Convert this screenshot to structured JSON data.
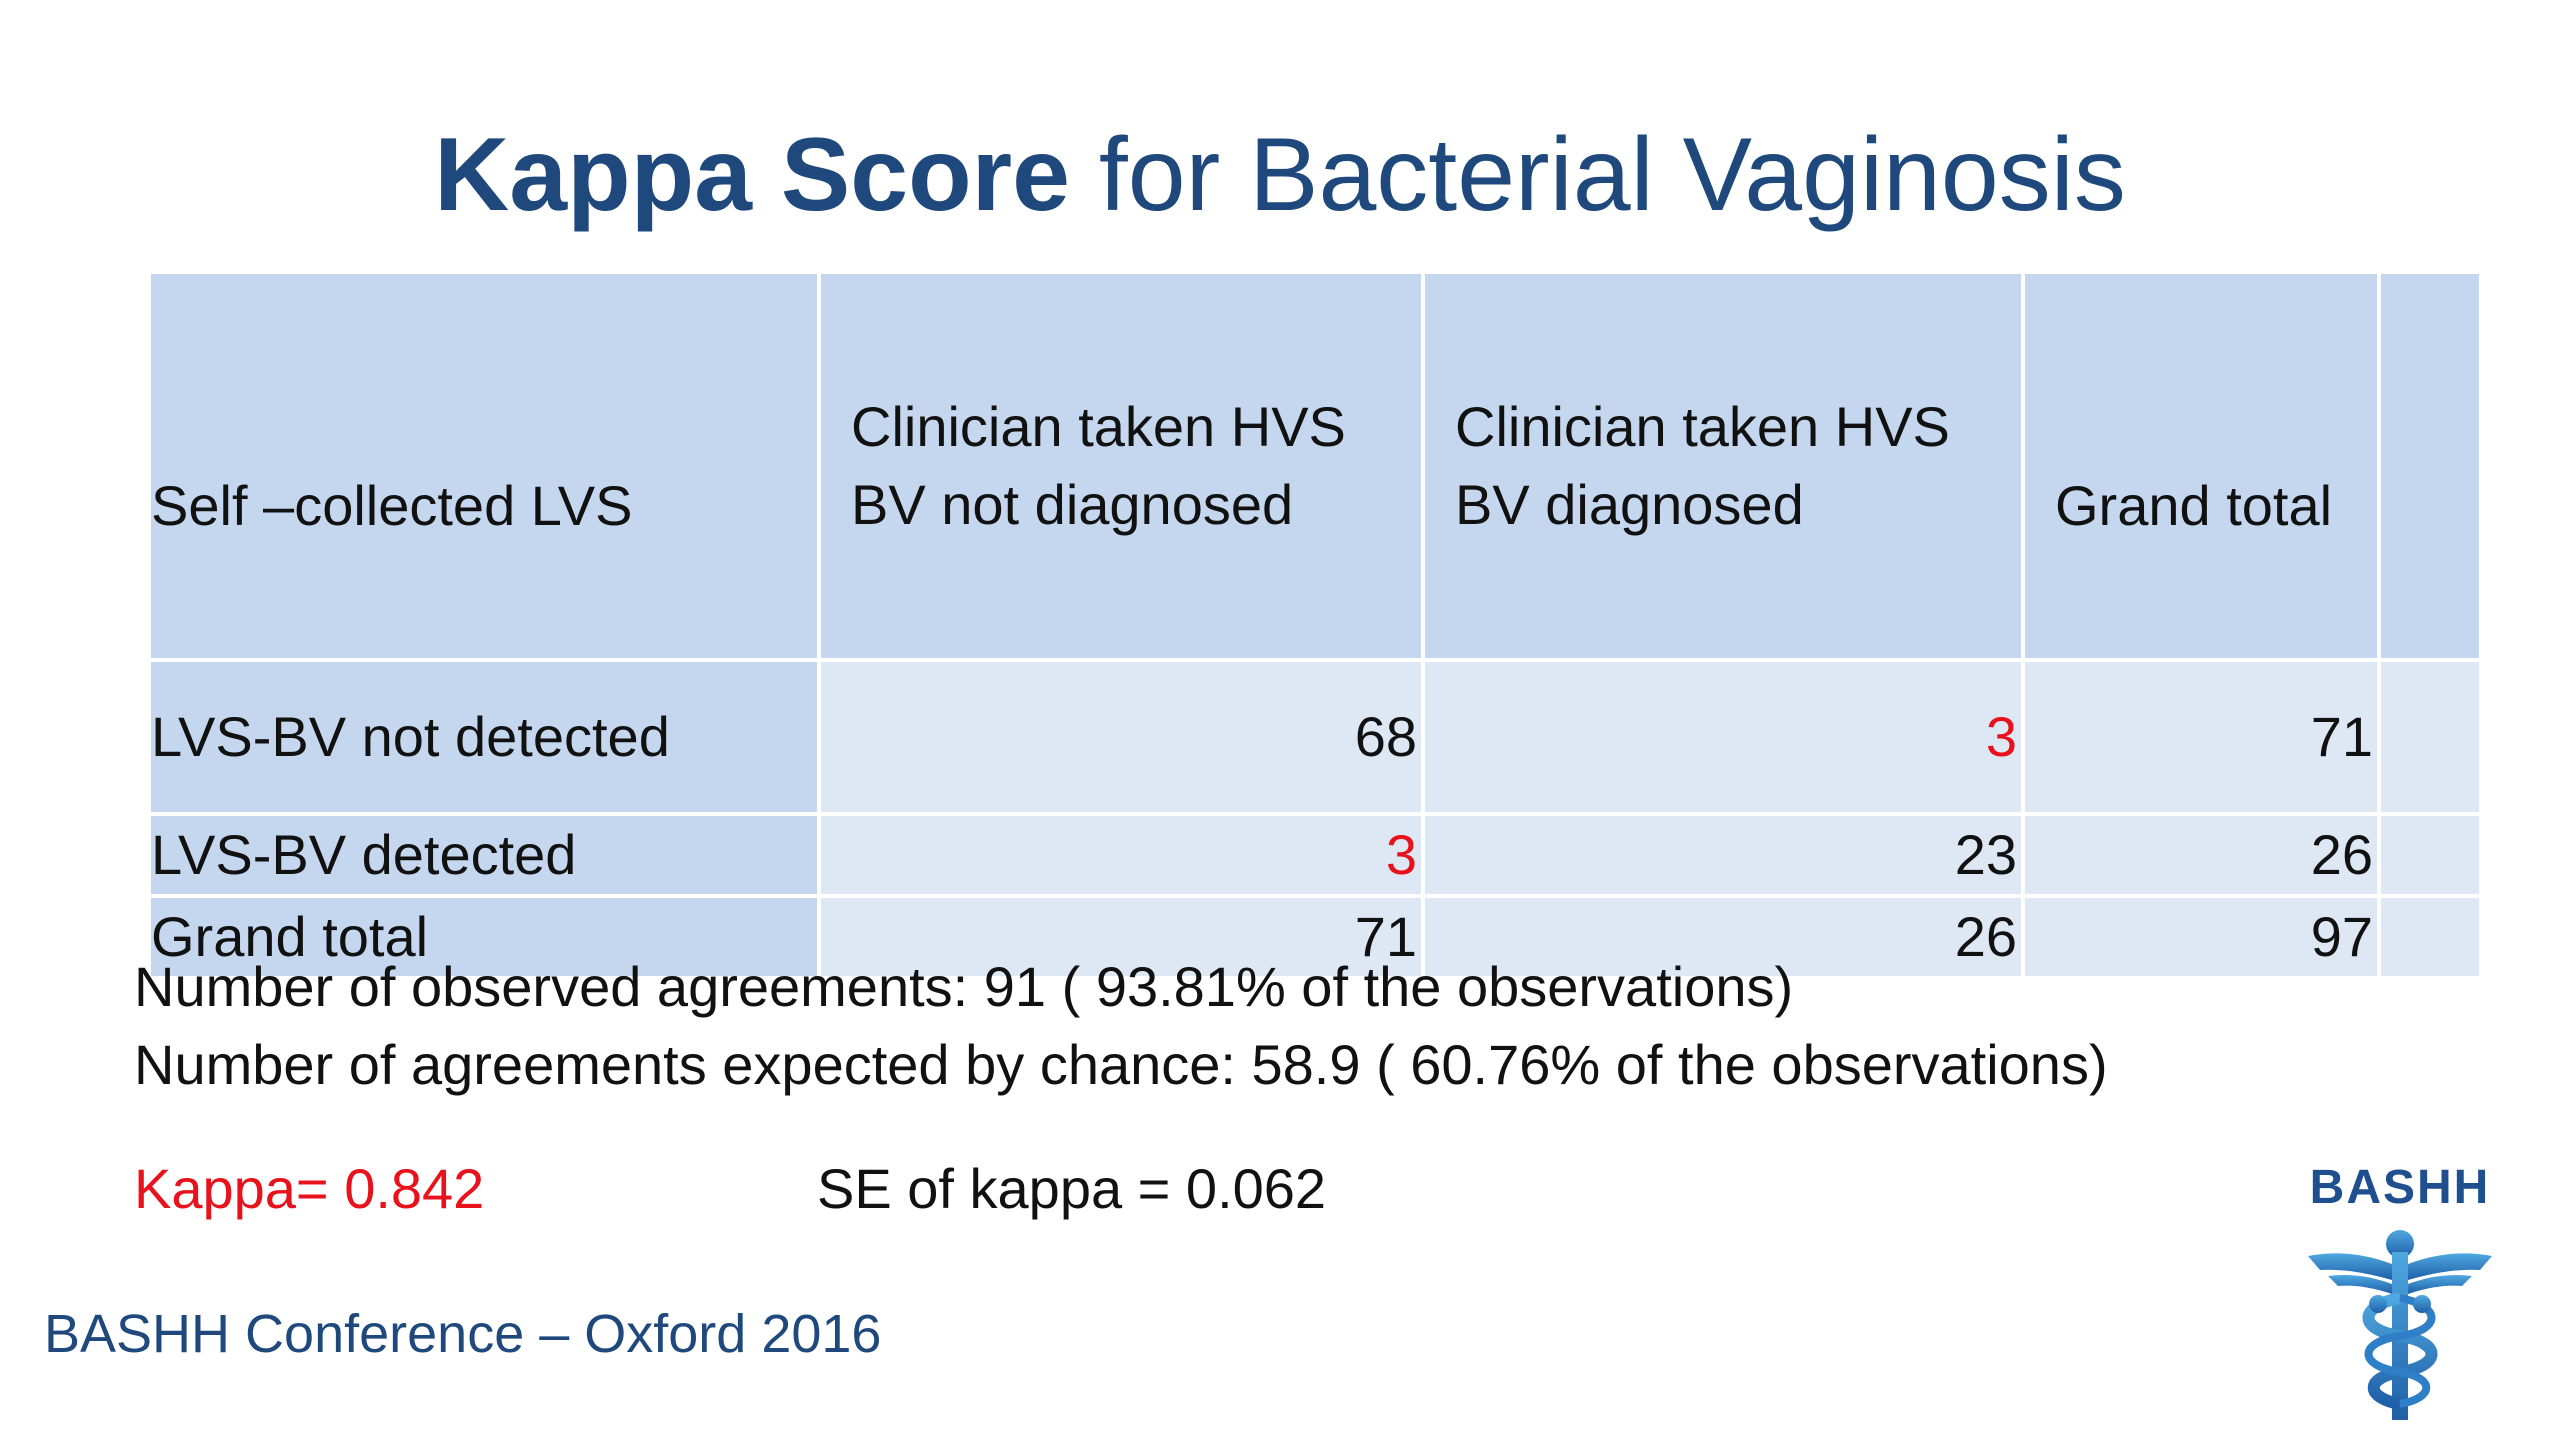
{
  "title": {
    "bold": "Kappa Score",
    "rest": " for Bacterial Vaginosis"
  },
  "table": {
    "header": {
      "col0": "Self –collected LVS",
      "col1_line1": "Clinician taken HVS",
      "col1_line2": "BV not diagnosed",
      "col2_line1": "Clinician taken HVS",
      "col2_line2": "BV diagnosed",
      "col3": "Grand total"
    },
    "rows": [
      {
        "label": "LVS-BV not detected",
        "c1": "68",
        "c2": "3",
        "c3": "71"
      },
      {
        "label": "LVS-BV detected",
        "c1": "3",
        "c2": "23",
        "c3": "26"
      },
      {
        "label": "Grand total",
        "c1": "71",
        "c2": "26",
        "c3": "97"
      }
    ],
    "highlight_color": "#e8121c"
  },
  "stats": {
    "observed": "Number of observed agreements: 91 ( 93.81% of the observations)",
    "expected": "Number of agreements expected by chance: 58.9 ( 60.76% of the observations)"
  },
  "kappa": "Kappa= 0.842",
  "se": "SE of kappa = 0.062",
  "footer": "BASHH Conference – Oxford 2016",
  "logo": {
    "text": "BASHH",
    "icon": "caduceus-icon"
  },
  "colors": {
    "title": "#1f497d",
    "header_cell": "#c5d7ef",
    "body_cell": "#dde8f4",
    "kappa": "#e8121c"
  }
}
